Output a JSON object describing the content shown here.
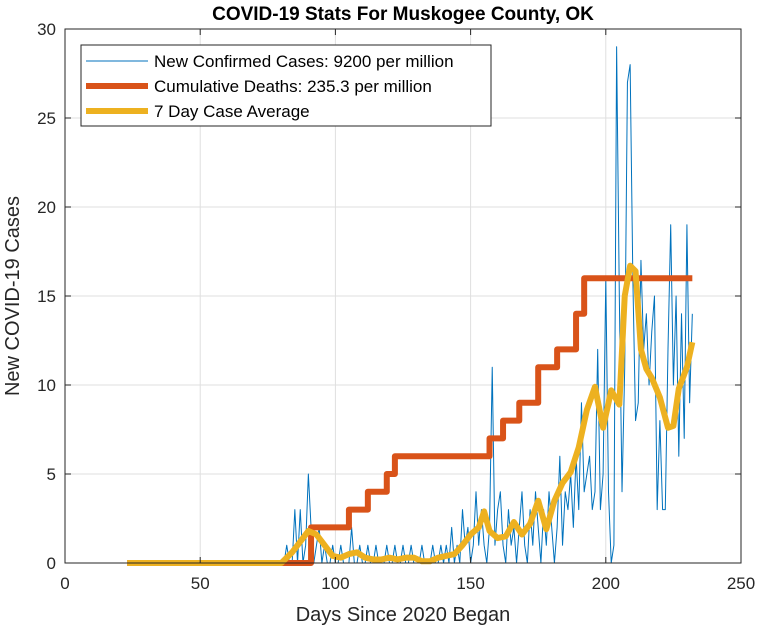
{
  "chart_data": {
    "type": "line",
    "title": "COVID-19 Stats For Muskogee County, OK",
    "xlabel": "Days Since 2020 Began",
    "ylabel": "New COVID-19 Cases",
    "xlim": [
      0,
      250
    ],
    "ylim": [
      0,
      30
    ],
    "xticks": [
      0,
      50,
      100,
      150,
      200,
      250
    ],
    "yticks": [
      0,
      5,
      10,
      15,
      20,
      25,
      30
    ],
    "grid": true,
    "legend_position": "top-left",
    "series": [
      {
        "name": "New Confirmed Cases: 9200 per million",
        "color": "#0072BD",
        "width": 1,
        "x": [
          23,
          30,
          40,
          50,
          60,
          70,
          80,
          81,
          82,
          83,
          84,
          85,
          86,
          87,
          88,
          89,
          90,
          91,
          92,
          93,
          94,
          95,
          96,
          97,
          98,
          99,
          100,
          101,
          102,
          103,
          104,
          105,
          106,
          107,
          108,
          109,
          110,
          111,
          112,
          113,
          114,
          115,
          116,
          117,
          118,
          119,
          120,
          121,
          122,
          123,
          124,
          125,
          126,
          127,
          128,
          129,
          130,
          131,
          132,
          133,
          134,
          135,
          136,
          137,
          138,
          139,
          140,
          141,
          142,
          143,
          144,
          145,
          146,
          147,
          148,
          149,
          150,
          151,
          152,
          153,
          154,
          155,
          156,
          157,
          158,
          159,
          160,
          161,
          162,
          163,
          164,
          165,
          166,
          167,
          168,
          169,
          170,
          171,
          172,
          173,
          174,
          175,
          176,
          177,
          178,
          179,
          180,
          181,
          182,
          183,
          184,
          185,
          186,
          187,
          188,
          189,
          190,
          191,
          192,
          193,
          194,
          195,
          196,
          197,
          198,
          199,
          200,
          201,
          202,
          203,
          204,
          205,
          206,
          207,
          208,
          209,
          210,
          211,
          212,
          213,
          214,
          215,
          216,
          217,
          218,
          219,
          220,
          221,
          222,
          223,
          224,
          225,
          226,
          227,
          228,
          229,
          230,
          231,
          232
        ],
        "y": [
          0,
          0,
          0,
          0,
          0,
          0,
          0,
          0,
          1,
          0,
          0,
          3,
          0,
          3,
          0,
          1,
          5,
          2,
          0,
          1,
          2,
          0,
          1,
          0,
          0,
          1,
          0,
          0,
          1,
          0,
          0,
          0,
          2,
          0,
          0,
          1,
          0,
          0,
          1,
          0,
          0,
          1,
          0,
          0,
          0,
          1,
          0,
          0,
          1,
          0,
          0,
          1,
          0,
          0,
          1,
          0,
          0,
          0,
          1,
          0,
          0,
          0,
          1,
          0,
          0,
          1,
          0,
          1,
          0,
          2,
          0,
          1,
          0,
          3,
          1,
          2,
          0,
          1,
          4,
          1,
          3,
          1,
          0,
          2,
          11,
          1,
          3,
          4,
          1,
          0,
          3,
          1,
          2,
          0,
          2,
          4,
          1,
          0,
          3,
          1,
          4,
          2,
          0,
          3,
          1,
          4,
          2,
          0,
          2,
          6,
          1,
          4,
          3,
          5,
          2,
          6,
          3,
          9,
          4,
          5,
          6,
          3,
          4,
          12,
          3,
          5,
          16,
          4,
          0,
          1,
          29,
          15,
          4,
          11,
          27,
          28,
          16,
          8,
          9,
          17,
          12,
          14,
          10,
          13,
          15,
          3,
          8,
          3,
          3,
          12,
          19,
          10,
          15,
          6,
          14,
          7,
          19,
          9,
          14
        ],
        "mark_kind": "line"
      },
      {
        "name": "Cumulative Deaths: 235.3 per million",
        "color": "#D95319",
        "width": 6,
        "x": [
          23,
          91,
          91,
          105,
          105,
          112,
          112,
          119,
          119,
          122,
          122,
          157,
          157,
          162,
          162,
          168,
          168,
          175,
          175,
          182,
          182,
          189,
          189,
          192,
          192,
          204,
          204,
          232
        ],
        "y": [
          0,
          0,
          2,
          2,
          3,
          3,
          4,
          4,
          5,
          5,
          6,
          6,
          7,
          7,
          8,
          8,
          9,
          9,
          11,
          11,
          12,
          12,
          14,
          14,
          16,
          16,
          16,
          16
        ],
        "mark_kind": "line"
      },
      {
        "name": "7 Day Case Average",
        "color": "#EDB120",
        "width": 6,
        "x": [
          23,
          40,
          60,
          80,
          84,
          87,
          90,
          93,
          96,
          99,
          102,
          105,
          108,
          111,
          114,
          117,
          120,
          123,
          126,
          129,
          132,
          135,
          138,
          141,
          144,
          147,
          150,
          153,
          155,
          157,
          160,
          163,
          166,
          169,
          172,
          175,
          178,
          181,
          184,
          187,
          190,
          193,
          196,
          199,
          202,
          205,
          207,
          209,
          211,
          213,
          215,
          217,
          220,
          223,
          225,
          227,
          230,
          232
        ],
        "y": [
          0,
          0,
          0,
          0,
          0.6,
          1.2,
          1.8,
          1.6,
          1,
          0.4,
          0.3,
          0.5,
          0.6,
          0.3,
          0.2,
          0.2,
          0.3,
          0.2,
          0.3,
          0.3,
          0.1,
          0.1,
          0.3,
          0.4,
          0.5,
          1,
          1.6,
          2,
          2.9,
          1.8,
          1.4,
          1.5,
          2.3,
          1.6,
          2.2,
          3.5,
          1.9,
          3.5,
          4.5,
          5.1,
          6.5,
          8.6,
          9.9,
          7.6,
          9.7,
          8.9,
          15,
          16.7,
          16.4,
          12,
          10.9,
          10.4,
          9.3,
          7.6,
          7.7,
          9.8,
          11,
          12.4
        ],
        "mark_kind": "line"
      }
    ]
  }
}
